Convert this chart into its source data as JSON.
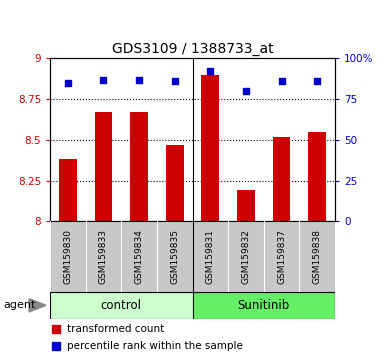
{
  "title": "GDS3109 / 1388733_at",
  "samples": [
    "GSM159830",
    "GSM159833",
    "GSM159834",
    "GSM159835",
    "GSM159831",
    "GSM159832",
    "GSM159837",
    "GSM159838"
  ],
  "bar_values": [
    8.38,
    8.67,
    8.67,
    8.47,
    8.9,
    8.19,
    8.52,
    8.55
  ],
  "percentile_values": [
    85,
    87,
    87,
    86,
    92,
    80,
    86,
    86
  ],
  "ymin": 8.0,
  "ymax": 9.0,
  "yticks": [
    8.0,
    8.25,
    8.5,
    8.75,
    9.0
  ],
  "ytick_labels": [
    "8",
    "8.25",
    "8.5",
    "8.75",
    "9"
  ],
  "right_yticks": [
    0,
    25,
    50,
    75,
    100
  ],
  "right_ytick_labels": [
    "0",
    "25",
    "50",
    "75",
    "100%"
  ],
  "bar_color": "#cc0000",
  "dot_color": "#0000cc",
  "control_color": "#ccffcc",
  "sunitinib_color": "#66ee66",
  "tick_label_color": "#cc0000",
  "right_tick_color": "#0000cc",
  "bar_width": 0.5,
  "agent_label": "agent",
  "control_label": "control",
  "sunitinib_label": "Sunitinib",
  "legend_bar_label": "transformed count",
  "legend_dot_label": "percentile rank within the sample",
  "grid_lines": [
    8.25,
    8.5,
    8.75
  ],
  "group_split": 3.5,
  "n_control": 4,
  "n_sunitinib": 4
}
